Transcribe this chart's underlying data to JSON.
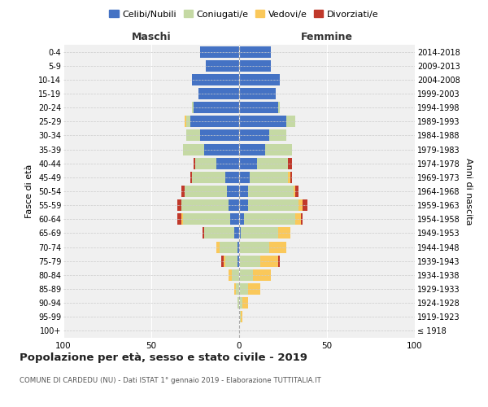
{
  "age_groups": [
    "100+",
    "95-99",
    "90-94",
    "85-89",
    "80-84",
    "75-79",
    "70-74",
    "65-69",
    "60-64",
    "55-59",
    "50-54",
    "45-49",
    "40-44",
    "35-39",
    "30-34",
    "25-29",
    "20-24",
    "15-19",
    "10-14",
    "5-9",
    "0-4"
  ],
  "birth_years": [
    "≤ 1918",
    "1919-1923",
    "1924-1928",
    "1929-1933",
    "1934-1938",
    "1939-1943",
    "1944-1948",
    "1949-1953",
    "1954-1958",
    "1959-1963",
    "1964-1968",
    "1969-1973",
    "1974-1978",
    "1979-1983",
    "1984-1988",
    "1989-1993",
    "1994-1998",
    "1999-2003",
    "2004-2008",
    "2009-2013",
    "2014-2018"
  ],
  "males": {
    "celibe": [
      0,
      0,
      0,
      0,
      0,
      1,
      1,
      3,
      5,
      6,
      7,
      8,
      13,
      20,
      22,
      28,
      26,
      23,
      27,
      19,
      22
    ],
    "coniugato": [
      0,
      0,
      1,
      2,
      4,
      7,
      10,
      17,
      27,
      27,
      24,
      19,
      12,
      12,
      8,
      2,
      1,
      0,
      0,
      0,
      0
    ],
    "vedovo": [
      0,
      0,
      0,
      1,
      2,
      1,
      2,
      0,
      1,
      0,
      0,
      0,
      0,
      0,
      0,
      1,
      0,
      0,
      0,
      0,
      0
    ],
    "divorziato": [
      0,
      0,
      0,
      0,
      0,
      1,
      0,
      1,
      2,
      2,
      2,
      1,
      1,
      0,
      0,
      0,
      0,
      0,
      0,
      0,
      0
    ]
  },
  "females": {
    "nubile": [
      0,
      0,
      0,
      0,
      0,
      0,
      0,
      1,
      3,
      5,
      5,
      6,
      10,
      15,
      17,
      27,
      22,
      21,
      23,
      18,
      18
    ],
    "coniugata": [
      0,
      1,
      2,
      5,
      8,
      12,
      17,
      21,
      29,
      29,
      26,
      22,
      18,
      15,
      10,
      5,
      1,
      0,
      0,
      0,
      0
    ],
    "vedova": [
      0,
      1,
      3,
      7,
      10,
      10,
      10,
      7,
      3,
      2,
      1,
      1,
      0,
      0,
      0,
      0,
      0,
      0,
      0,
      0,
      0
    ],
    "divorziata": [
      0,
      0,
      0,
      0,
      0,
      1,
      0,
      0,
      1,
      3,
      2,
      1,
      2,
      0,
      0,
      0,
      0,
      0,
      0,
      0,
      0
    ]
  },
  "colors": {
    "celibe": "#4472C4",
    "coniugato": "#C5D9A4",
    "vedovo": "#FAC85A",
    "divorziato": "#C0392B"
  },
  "xlim": 100,
  "title": "Popolazione per età, sesso e stato civile - 2019",
  "subtitle": "COMUNE DI CARDEDU (NU) - Dati ISTAT 1° gennaio 2019 - Elaborazione TUTTITALIA.IT",
  "ylabel_left": "Fasce di età",
  "ylabel_right": "Anni di nascita",
  "xlabel_maschi": "Maschi",
  "xlabel_femmine": "Femmine",
  "legend_labels": [
    "Celibi/Nubili",
    "Coniugati/e",
    "Vedovi/e",
    "Divorziati/e"
  ],
  "background_color": "#ffffff",
  "plot_bg_color": "#f0f0f0"
}
